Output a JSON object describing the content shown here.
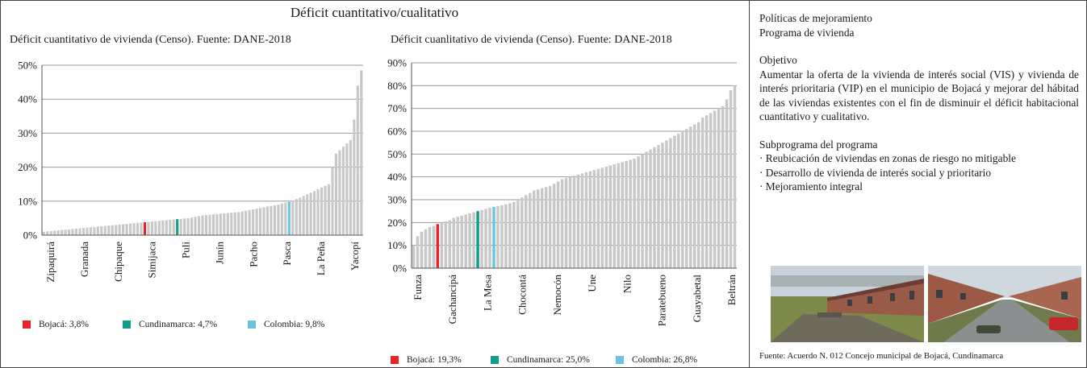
{
  "title": "Déficit cuantitativo/cualitativo",
  "colors": {
    "bar": "#c8c8c8",
    "grid": "#9a9a9a",
    "bojaca": "#e8232a",
    "cundinamarca": "#129c8b",
    "colombia": "#6ec3dc"
  },
  "chart_data": [
    {
      "type": "bar",
      "title": "Déficit cuantitativo de vivienda (Censo). Fuente: DANE-2018",
      "ylim": [
        0,
        50
      ],
      "yticks": [
        "0%",
        "10%",
        "20%",
        "30%",
        "40%",
        "50%"
      ],
      "xtick_labels": [
        "Zipaquirá",
        "Granada",
        "Chipaque",
        "Simijaca",
        "Puli",
        "Junín",
        "Pacho",
        "Pasca",
        "La Peña",
        "Yacopí"
      ],
      "grid": true,
      "legend": [
        {
          "label": "Bojacá: 3,8%",
          "value": 3.8,
          "color": "#e8232a"
        },
        {
          "label": "Cundinamarca: 4,7%",
          "value": 4.7,
          "color": "#129c8b"
        },
        {
          "label": "Colombia: 9,8%",
          "value": 9.8,
          "color": "#6ec3dc"
        }
      ],
      "values": [
        1.0,
        1.1,
        1.2,
        1.3,
        1.4,
        1.5,
        1.6,
        1.7,
        1.8,
        1.9,
        2.0,
        2.1,
        2.2,
        2.3,
        2.4,
        2.5,
        2.6,
        2.7,
        2.8,
        2.9,
        3.0,
        3.1,
        3.2,
        3.3,
        3.4,
        3.5,
        3.6,
        3.7,
        3.8,
        3.9,
        4.0,
        4.1,
        4.2,
        4.3,
        4.4,
        4.5,
        4.6,
        4.7,
        4.8,
        4.9,
        5.0,
        5.2,
        5.4,
        5.6,
        5.8,
        5.9,
        6.0,
        6.1,
        6.2,
        6.3,
        6.4,
        6.5,
        6.6,
        6.7,
        6.8,
        7.0,
        7.2,
        7.4,
        7.6,
        7.8,
        8.0,
        8.2,
        8.4,
        8.6,
        8.8,
        9.0,
        9.3,
        9.6,
        9.8,
        10.2,
        10.6,
        11.0,
        11.5,
        12.0,
        12.5,
        13.0,
        13.5,
        14.0,
        14.5,
        15.0,
        20.0,
        24.0,
        25.0,
        26.0,
        27.0,
        28.0,
        34.0,
        44.0,
        48.5
      ]
    },
    {
      "type": "bar",
      "title": "Déficit cuanlitativo de vivienda (Censo). Fuente: DANE-2018",
      "ylim": [
        0,
        90
      ],
      "yticks": [
        "0%",
        "10%",
        "20%",
        "30%",
        "40%",
        "50%",
        "60%",
        "70%",
        "80%",
        "90%"
      ],
      "xtick_labels": [
        "Funza",
        "Gachancipá",
        "La Mesa",
        "Chocontá",
        "Nemocón",
        "Une",
        "Nilo",
        "Paratebueno",
        "Guayabetal",
        "Beltrán"
      ],
      "grid": true,
      "legend": [
        {
          "label": "Bojacá: 19,3%",
          "value": 19.3,
          "color": "#e8232a"
        },
        {
          "label": "Cundinamarca: 25,0%",
          "value": 25.0,
          "color": "#129c8b"
        },
        {
          "label": "Colombia: 26,8%",
          "value": 26.8,
          "color": "#6ec3dc"
        }
      ],
      "values": [
        10.0,
        14.0,
        16.0,
        17.0,
        18.0,
        18.5,
        19.3,
        20.0,
        20.5,
        21.0,
        22.0,
        22.5,
        23.0,
        23.5,
        24.0,
        24.5,
        25.0,
        25.5,
        26.0,
        26.5,
        26.8,
        27.2,
        27.6,
        28.0,
        28.5,
        29.0,
        30.0,
        31.0,
        32.0,
        33.0,
        34.0,
        34.5,
        35.0,
        35.5,
        36.0,
        37.0,
        38.0,
        39.0,
        39.5,
        40.0,
        40.5,
        41.0,
        41.5,
        42.0,
        42.5,
        43.0,
        43.5,
        44.0,
        44.5,
        45.0,
        45.5,
        46.0,
        46.5,
        47.0,
        47.5,
        48.0,
        49.0,
        50.0,
        51.0,
        52.0,
        53.0,
        54.0,
        55.0,
        56.0,
        57.0,
        58.0,
        59.0,
        60.0,
        61.0,
        62.0,
        63.0,
        64.0,
        66.0,
        67.0,
        68.0,
        69.0,
        70.0,
        71.0,
        74.0,
        78.0,
        80.0
      ]
    }
  ],
  "panel": {
    "heading1": "Políticas de mejoramiento",
    "heading2": "Programa de vivienda",
    "objetivo_label": "Objetivo",
    "objetivo_text": "Aumentar la oferta de la vivienda de interés social (VIS) y vivienda de interés prioritaria (VIP) en el municipio de Bojacá y mejorar del hábitad de las viviendas existentes con el fin de disminuir el déficit habitacional cuantitativo y cualitativo.",
    "subprograma_label": "Subprograma del programa",
    "items": [
      "· Reubicación de viviendas en zonas de riesgo no mitigable",
      "· Desarrollo de vivienda de interés social y prioritario",
      "· Mejoramiento integral"
    ],
    "source": "Fuente: Acuerdo N. 012 Concejo municipal de Bojacá, Cundinamarca"
  }
}
